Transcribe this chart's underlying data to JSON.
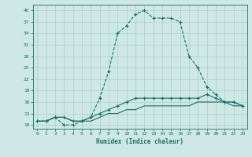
{
  "xlabel": "Humidex (Indice chaleur)",
  "bg_color": "#cde8e5",
  "grid_color": "#aecfcc",
  "line_color": "#1a6e62",
  "series": [
    {
      "x": [
        0,
        1,
        2,
        3,
        4,
        5,
        6,
        7,
        8,
        9,
        10,
        11,
        12,
        13,
        14,
        15,
        16,
        17,
        18,
        19,
        20,
        21,
        22,
        23
      ],
      "y": [
        11,
        11,
        12,
        10,
        10,
        11,
        12,
        17,
        24,
        34,
        36,
        39,
        40,
        38,
        38,
        38,
        37,
        28,
        25,
        20,
        18,
        16,
        16,
        15
      ],
      "linestyle": "--",
      "marker": true
    },
    {
      "x": [
        0,
        1,
        2,
        3,
        4,
        5,
        6,
        7,
        8,
        9,
        10,
        11,
        12,
        13,
        14,
        15,
        16,
        17,
        18,
        19,
        20,
        21,
        22,
        23
      ],
      "y": [
        11,
        11,
        12,
        12,
        11,
        11,
        12,
        13,
        14,
        15,
        16,
        17,
        17,
        17,
        17,
        17,
        17,
        17,
        17,
        18,
        17,
        16,
        16,
        15
      ],
      "linestyle": "-",
      "marker": true
    },
    {
      "x": [
        0,
        1,
        2,
        3,
        4,
        5,
        6,
        7,
        8,
        9,
        10,
        11,
        12,
        13,
        14,
        15,
        16,
        17,
        18,
        19,
        20,
        21,
        22,
        23
      ],
      "y": [
        11,
        11,
        12,
        12,
        11,
        11,
        11,
        12,
        13,
        13,
        14,
        14,
        15,
        15,
        15,
        15,
        15,
        15,
        16,
        16,
        16,
        16,
        15,
        15
      ],
      "linestyle": "-",
      "marker": false
    }
  ],
  "yticks": [
    10,
    13,
    16,
    19,
    22,
    25,
    28,
    31,
    34,
    37,
    40
  ],
  "xticks": [
    0,
    1,
    2,
    3,
    4,
    5,
    6,
    7,
    8,
    9,
    10,
    11,
    12,
    13,
    14,
    15,
    16,
    17,
    18,
    19,
    20,
    21,
    22,
    23
  ],
  "ylim": [
    9,
    41.5
  ],
  "xlim": [
    -0.5,
    23.5
  ]
}
